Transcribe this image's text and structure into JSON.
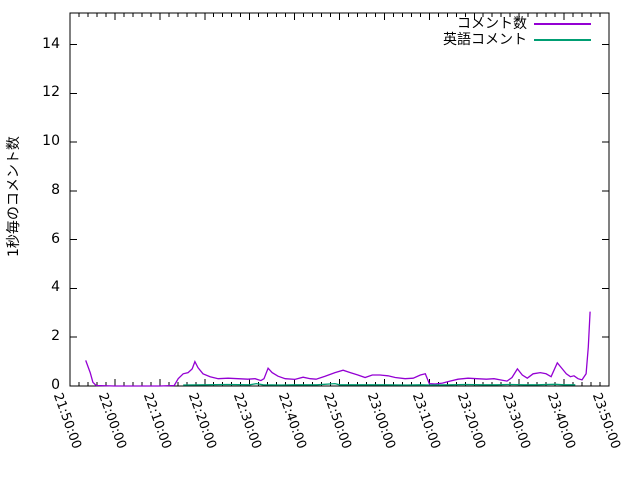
{
  "chart_data": {
    "type": "line",
    "title": "",
    "xlabel": "",
    "ylabel": "1秒毎のコメント数",
    "grid": false,
    "legend_position": "top-right-inside",
    "background_color": "#ffffff",
    "axis_color": "#000000",
    "x_axis": {
      "unit": "time (HH:MM:SS)",
      "range_minutes": [
        0,
        120
      ],
      "start_time": "21:50:00",
      "tick_interval_minutes": 10,
      "minor_tick_interval_minutes": 2,
      "tick_labels": [
        "21:50:00",
        "22:00:00",
        "22:10:00",
        "22:20:00",
        "22:30:00",
        "22:40:00",
        "22:50:00",
        "23:00:00",
        "23:10:00",
        "23:20:00",
        "23:30:00",
        "23:40:00",
        "23:50:00"
      ]
    },
    "y_axis": {
      "ticks": [
        0,
        2,
        4,
        6,
        8,
        10,
        12,
        14
      ],
      "range": [
        0,
        15.3
      ]
    },
    "series": [
      {
        "name": "コメント数",
        "color": "#9400d3",
        "points_format": "[minutes_after_21:50, comments_per_sec]",
        "points": [
          [
            3.5,
            1.05
          ],
          [
            4.5,
            0.55
          ],
          [
            5.1,
            0.15
          ],
          [
            5.8,
            0.02
          ],
          [
            10,
            0.0
          ],
          [
            15,
            0.0
          ],
          [
            20,
            0.0
          ],
          [
            23.2,
            0.02
          ],
          [
            24.1,
            0.3
          ],
          [
            25.2,
            0.5
          ],
          [
            26.3,
            0.55
          ],
          [
            27.2,
            0.7
          ],
          [
            27.8,
            1.0
          ],
          [
            28.5,
            0.75
          ],
          [
            29.6,
            0.5
          ],
          [
            31.2,
            0.38
          ],
          [
            33,
            0.3
          ],
          [
            35.2,
            0.32
          ],
          [
            37.4,
            0.3
          ],
          [
            39.6,
            0.28
          ],
          [
            41.2,
            0.3
          ],
          [
            42.5,
            0.22
          ],
          [
            43.2,
            0.3
          ],
          [
            44.1,
            0.73
          ],
          [
            45,
            0.55
          ],
          [
            46.3,
            0.4
          ],
          [
            47.9,
            0.3
          ],
          [
            50.1,
            0.27
          ],
          [
            51.9,
            0.36
          ],
          [
            53.5,
            0.3
          ],
          [
            54.8,
            0.28
          ],
          [
            56.8,
            0.4
          ],
          [
            59,
            0.55
          ],
          [
            60.8,
            0.65
          ],
          [
            62.4,
            0.55
          ],
          [
            64.1,
            0.45
          ],
          [
            65.7,
            0.35
          ],
          [
            67.3,
            0.45
          ],
          [
            69,
            0.45
          ],
          [
            70.8,
            0.42
          ],
          [
            72.4,
            0.35
          ],
          [
            74.6,
            0.3
          ],
          [
            76.4,
            0.32
          ],
          [
            78,
            0.45
          ],
          [
            79.1,
            0.5
          ],
          [
            80,
            0.1
          ],
          [
            81.3,
            0.08
          ],
          [
            82.9,
            0.12
          ],
          [
            84.6,
            0.2
          ],
          [
            86.4,
            0.28
          ],
          [
            88.6,
            0.32
          ],
          [
            90.6,
            0.3
          ],
          [
            92.7,
            0.28
          ],
          [
            94.4,
            0.3
          ],
          [
            95.8,
            0.25
          ],
          [
            97.3,
            0.2
          ],
          [
            98.4,
            0.35
          ],
          [
            99.6,
            0.7
          ],
          [
            100.7,
            0.45
          ],
          [
            101.8,
            0.32
          ],
          [
            103.1,
            0.5
          ],
          [
            104.7,
            0.55
          ],
          [
            106,
            0.5
          ],
          [
            107.1,
            0.38
          ],
          [
            108.5,
            0.95
          ],
          [
            109.6,
            0.7
          ],
          [
            110.5,
            0.5
          ],
          [
            111.4,
            0.38
          ],
          [
            112.2,
            0.42
          ],
          [
            113.1,
            0.3
          ],
          [
            114,
            0.25
          ],
          [
            114.9,
            0.5
          ],
          [
            115.4,
            1.6
          ],
          [
            115.8,
            3.05
          ]
        ]
      },
      {
        "name": "英語コメント",
        "color": "#009e73",
        "points_format": "[minutes_after_21:50, comments_per_sec]",
        "points": [
          [
            25.2,
            0.04
          ],
          [
            30,
            0.05
          ],
          [
            35,
            0.06
          ],
          [
            40,
            0.05
          ],
          [
            41.5,
            0.1
          ],
          [
            43,
            0.05
          ],
          [
            47,
            0.04
          ],
          [
            50,
            0.05
          ],
          [
            55,
            0.05
          ],
          [
            59,
            0.1
          ],
          [
            60,
            0.05
          ],
          [
            65,
            0.05
          ],
          [
            70,
            0.05
          ],
          [
            75,
            0.04
          ],
          [
            78,
            0.05
          ],
          [
            80,
            0.04
          ],
          [
            85,
            0.05
          ],
          [
            88,
            0.06
          ],
          [
            92,
            0.05
          ],
          [
            95,
            0.05
          ],
          [
            98,
            0.06
          ],
          [
            101,
            0.05
          ],
          [
            104,
            0.05
          ],
          [
            108,
            0.07
          ],
          [
            110,
            0.05
          ],
          [
            112.5,
            0.05
          ]
        ]
      }
    ]
  }
}
